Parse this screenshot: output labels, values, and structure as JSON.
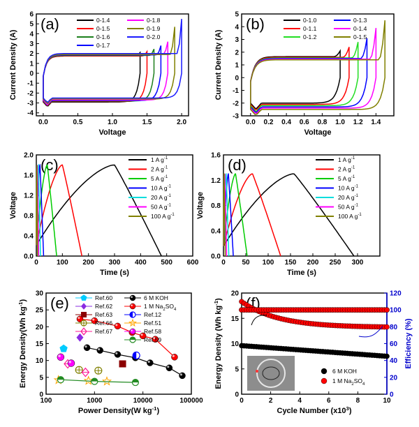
{
  "chart_data": [
    {
      "id": "a",
      "panel_label": "(a)",
      "type": "line",
      "xlabel": "Voltage",
      "ylabel": "Current Density (A)",
      "xlim": [
        -0.1,
        2.1
      ],
      "ylim": [
        -4.3,
        6.0
      ],
      "xticks": [
        0.0,
        0.5,
        1.0,
        1.5,
        2.0
      ],
      "yticks": [
        -4,
        -3,
        -2,
        -1,
        0,
        1,
        2,
        3,
        4,
        5,
        6
      ],
      "xtick_labels": [
        "0.0",
        "0.5",
        "1.0",
        "1.5",
        "2.0"
      ],
      "ytick_labels": [
        "-4",
        "-3",
        "-2",
        "-1",
        "0",
        "1",
        "2",
        "3",
        "4",
        "5",
        "6"
      ],
      "legend_position": "top-right",
      "series": [
        {
          "name": "0-1.4",
          "color": "#000000",
          "vmax": 1.4,
          "top": 1.75,
          "bottom": -2.9,
          "peak": 2.1
        },
        {
          "name": "0-1.5",
          "color": "#ff0000",
          "vmax": 1.5,
          "top": 1.75,
          "bottom": -2.85,
          "peak": 2.2
        },
        {
          "name": "0-1.6",
          "color": "#1b7f1b",
          "vmax": 1.6,
          "top": 1.8,
          "bottom": -2.8,
          "peak": 2.45
        },
        {
          "name": "0-1.7",
          "color": "#0000ff",
          "vmax": 1.7,
          "top": 1.85,
          "bottom": -2.75,
          "peak": 2.8
        },
        {
          "name": "0-1.8",
          "color": "#ff00ff",
          "vmax": 1.8,
          "top": 1.9,
          "bottom": -2.7,
          "peak": 3.2
        },
        {
          "name": "0-1.9",
          "color": "#808000",
          "vmax": 1.9,
          "top": 1.9,
          "bottom": -2.6,
          "peak": 4.7
        },
        {
          "name": "0-2.0",
          "color": "#1a1aff",
          "vmax": 2.0,
          "top": 2.0,
          "bottom": -2.5,
          "peak": 5.5
        }
      ]
    },
    {
      "id": "b",
      "panel_label": "(b)",
      "type": "line",
      "xlabel": "Voltage",
      "ylabel": "Current Density (A)",
      "xlim": [
        -0.1,
        1.6
      ],
      "ylim": [
        -3,
        5
      ],
      "xticks": [
        0.0,
        0.2,
        0.4,
        0.6,
        0.8,
        1.0,
        1.2,
        1.4
      ],
      "yticks": [
        -3,
        -2,
        -1,
        0,
        1,
        2,
        3,
        4,
        5
      ],
      "xtick_labels": [
        "0.0",
        "0.2",
        "0.4",
        "0.6",
        "0.8",
        "1.0",
        "1.2",
        "1.4"
      ],
      "ytick_labels": [
        "-3",
        "-2",
        "-1",
        "0",
        "1",
        "2",
        "3",
        "4",
        "5"
      ],
      "legend_position": "top-right",
      "series": [
        {
          "name": "0-1.0",
          "color": "#000000",
          "vmax": 1.0,
          "top": 1.65,
          "bottom": -2.0,
          "peak": 2.1
        },
        {
          "name": "0-1.1",
          "color": "#ff0000",
          "vmax": 1.1,
          "top": 1.6,
          "bottom": -2.1,
          "peak": 2.4
        },
        {
          "name": "0-1.2",
          "color": "#22dd22",
          "vmax": 1.2,
          "top": 1.55,
          "bottom": -2.2,
          "peak": 2.8
        },
        {
          "name": "0-1.3",
          "color": "#0000ff",
          "vmax": 1.3,
          "top": 1.5,
          "bottom": -2.3,
          "peak": 3.1
        },
        {
          "name": "0-1.4",
          "color": "#ff00ff",
          "vmax": 1.4,
          "top": 1.45,
          "bottom": -2.4,
          "peak": 3.9
        },
        {
          "name": "0-1.5",
          "color": "#808000",
          "vmax": 1.5,
          "top": 1.4,
          "bottom": -2.5,
          "peak": 4.5
        }
      ]
    },
    {
      "id": "c",
      "panel_label": "(c)",
      "type": "line",
      "xlabel": "Time (s)",
      "ylabel": "Voltage",
      "xlim": [
        0,
        600
      ],
      "ylim": [
        0,
        2.0
      ],
      "xticks": [
        0,
        100,
        200,
        300,
        400,
        500,
        600
      ],
      "yticks": [
        0.0,
        0.4,
        0.8,
        1.2,
        1.6,
        2.0
      ],
      "xtick_labels": [
        "0",
        "100",
        "200",
        "300",
        "400",
        "500",
        "600"
      ],
      "ytick_labels": [
        "0.0",
        "0.4",
        "0.8",
        "1.2",
        "1.6",
        "2.0"
      ],
      "legend_position": "right",
      "series": [
        {
          "name": "1 A g",
          "sup": "-1",
          "color": "#000000",
          "t0": 0,
          "tpeak": 300,
          "tend": 480,
          "vpeak": 1.8
        },
        {
          "name": "2 A g",
          "sup": "-1",
          "color": "#ff0000",
          "t0": 0,
          "tpeak": 100,
          "tend": 175,
          "vpeak": 1.8
        },
        {
          "name": "5 A g",
          "sup": "-1",
          "color": "#00cc00",
          "t0": 0,
          "tpeak": 42,
          "tend": 78,
          "vpeak": 1.8
        },
        {
          "name": "10 A g",
          "sup": "-1",
          "color": "#0000ff",
          "t0": 0,
          "tpeak": 14,
          "tend": 28,
          "vpeak": 1.8
        },
        {
          "name": "20 A g",
          "sup": "-1",
          "color": "#00dddd",
          "t0": 0,
          "tpeak": 8,
          "tend": 16,
          "vpeak": 1.8
        },
        {
          "name": "50 A g",
          "sup": "-1",
          "color": "#ff00ff",
          "t0": 0,
          "tpeak": 4,
          "tend": 9,
          "vpeak": 1.8
        },
        {
          "name": "100 A g",
          "sup": "-1",
          "color": "#808000",
          "t0": 0,
          "tpeak": 2,
          "tend": 5,
          "vpeak": 1.8
        }
      ]
    },
    {
      "id": "d",
      "panel_label": "(d)",
      "type": "line",
      "xlabel": "Time (s)",
      "ylabel": "Voltage",
      "xlim": [
        0,
        350
      ],
      "ylim": [
        0,
        1.6
      ],
      "xticks": [
        0,
        50,
        100,
        150,
        200,
        250,
        300
      ],
      "yticks": [
        0.0,
        0.4,
        0.8,
        1.2,
        1.6
      ],
      "xtick_labels": [
        "0",
        "50",
        "100",
        "150",
        "200",
        "250",
        "300"
      ],
      "ytick_labels": [
        "0.0",
        "0.4",
        "0.8",
        "1.2",
        "1.6"
      ],
      "legend_position": "right",
      "series": [
        {
          "name": "1 A g",
          "sup": "-1",
          "color": "#000000",
          "t0": 0,
          "tpeak": 158,
          "tend": 292,
          "vpeak": 1.3
        },
        {
          "name": "2 A g",
          "sup": "-1",
          "color": "#ff0000",
          "t0": 0,
          "tpeak": 65,
          "tend": 128,
          "vpeak": 1.3
        },
        {
          "name": "5 A g",
          "sup": "-1",
          "color": "#00cc00",
          "t0": 0,
          "tpeak": 27,
          "tend": 53,
          "vpeak": 1.3
        },
        {
          "name": "10 A g",
          "sup": "-1",
          "color": "#0000ff",
          "t0": 0,
          "tpeak": 11,
          "tend": 22,
          "vpeak": 1.3
        },
        {
          "name": "20 A g",
          "sup": "-1",
          "color": "#00dddd",
          "t0": 0,
          "tpeak": 6,
          "tend": 12,
          "vpeak": 1.3
        },
        {
          "name": "50 A g",
          "sup": "-1",
          "color": "#ff00ff",
          "t0": 0,
          "tpeak": 3,
          "tend": 7,
          "vpeak": 1.3
        },
        {
          "name": "100 A g",
          "sup": "-1",
          "color": "#808000",
          "t0": 0,
          "tpeak": 1.5,
          "tend": 4,
          "vpeak": 1.3
        }
      ]
    },
    {
      "id": "e",
      "panel_label": "(e)",
      "type": "scatter",
      "xscale": "log",
      "xlabel": "Power Density(W kg",
      "xlabel_sup": "-1",
      "xlabel_tail": ")",
      "ylabel": "Energy Density(Wh kg",
      "ylabel_sup": "-1",
      "ylabel_tail": ")",
      "xlim": [
        100,
        100000
      ],
      "ylim": [
        0,
        30
      ],
      "xticks": [
        100,
        1000,
        10000,
        100000
      ],
      "yticks": [
        0,
        5,
        10,
        15,
        20,
        25,
        30
      ],
      "xtick_labels": [
        "100",
        "1000",
        "10000",
        "100000"
      ],
      "ytick_labels": [
        "0",
        "5",
        "10",
        "15",
        "20",
        "25",
        "30"
      ],
      "legend_position": "top",
      "series": [
        {
          "name": "6 M KOH",
          "color": "#000000",
          "marker": "ball",
          "line": true,
          "points": [
            [
              700,
              13.8
            ],
            [
              1300,
              13.0
            ],
            [
              3000,
              11.8
            ],
            [
              7000,
              10.8
            ],
            [
              14000,
              9.3
            ],
            [
              35000,
              7.8
            ],
            [
              65000,
              5.5
            ]
          ]
        },
        {
          "name": "1 M Na",
          "sub": "2",
          "tail": "SO",
          "sub2": "4",
          "color": "#ff0000",
          "marker": "ball",
          "line": true,
          "points": [
            [
              500,
              22.3
            ],
            [
              1000,
              21.8
            ],
            [
              3000,
              20.2
            ],
            [
              6000,
              18.3
            ],
            [
              10000,
              17.3
            ],
            [
              18000,
              16.3
            ],
            [
              45000,
              11.0
            ]
          ]
        },
        {
          "name": "Ref.60",
          "color": "#00ccff",
          "marker": "pentagon",
          "points": [
            [
              230,
              13.5
            ]
          ]
        },
        {
          "name": "Ref.62",
          "color": "#8a2be2",
          "marker": "diamond",
          "points": [
            [
              500,
              16.8
            ]
          ]
        },
        {
          "name": "Ref.63",
          "color": "#8b0000",
          "marker": "square",
          "points": [
            [
              3800,
              9.0
            ]
          ]
        },
        {
          "name": "Ref.66",
          "color": "#808000",
          "marker": "circle-plus",
          "points": [
            [
              480,
              7.2
            ],
            [
              1200,
              7.0
            ]
          ]
        },
        {
          "name": "Ref.67",
          "color": "#ff1493",
          "marker": "diamond-open",
          "points": [
            [
              280,
              9.0
            ],
            [
              650,
              6.5
            ]
          ]
        },
        {
          "name": "Ref.12",
          "color": "#0000ff",
          "marker": "half-circle",
          "points": [
            [
              7300,
              11.5
            ]
          ]
        },
        {
          "name": "Ref.51",
          "color": "#ffa500",
          "marker": "star",
          "points": [
            [
              180,
              4.2
            ],
            [
              750,
              4.0
            ],
            [
              1800,
              3.8
            ]
          ]
        },
        {
          "name": "Ref.58",
          "color": "#ff00ff",
          "marker": "ball-m",
          "points": [
            [
              200,
              11.0
            ],
            [
              330,
              9.2
            ]
          ]
        },
        {
          "name": "Ref.59",
          "color": "#228b22",
          "marker": "half-down",
          "line": true,
          "points": [
            [
              200,
              4.3
            ],
            [
              1000,
              3.8
            ],
            [
              7000,
              3.5
            ]
          ]
        }
      ]
    },
    {
      "id": "f",
      "panel_label": "(f)",
      "type": "scatter",
      "xlabel": "Cycle Number (x10",
      "xlabel_sup": "3",
      "xlabel_tail": ")",
      "ylabel": "Energy Density (Wh kg",
      "ylabel_sup": "-1",
      "ylabel_tail": ")",
      "y2label": "Efficiency (%)",
      "xlim": [
        0,
        10
      ],
      "ylim": [
        0,
        20
      ],
      "y2lim": [
        0,
        120
      ],
      "xticks": [
        0,
        2,
        4,
        6,
        8,
        10
      ],
      "yticks": [
        0,
        5,
        10,
        15,
        20
      ],
      "y2ticks": [
        0,
        20,
        40,
        60,
        80,
        100,
        120
      ],
      "xtick_labels": [
        "0",
        "2",
        "4",
        "6",
        "8",
        "10"
      ],
      "ytick_labels": [
        "0",
        "5",
        "10",
        "15",
        "20"
      ],
      "y2tick_labels": [
        "0",
        "20",
        "40",
        "60",
        "80",
        "100",
        "120"
      ],
      "legend_position": "bottom-right",
      "inset": "photo",
      "series": [
        {
          "name": "6 M KOH",
          "color": "#000000",
          "axis": "left",
          "start": 9.6,
          "end": 7.5,
          "decay": "linear"
        },
        {
          "name": "1 M Na",
          "sub": "2",
          "tail": "SO",
          "sub2": "4",
          "color": "#ff0000",
          "axis": "left",
          "start": 18.3,
          "end": 13.2,
          "decay": "exp"
        },
        {
          "name": "Efficiency KOH",
          "color": "#000000",
          "axis": "right",
          "value": 100,
          "legend": false
        },
        {
          "name": "Efficiency Na2SO4",
          "color": "#ff0000",
          "axis": "right",
          "value": 100,
          "legend": false
        }
      ]
    }
  ]
}
